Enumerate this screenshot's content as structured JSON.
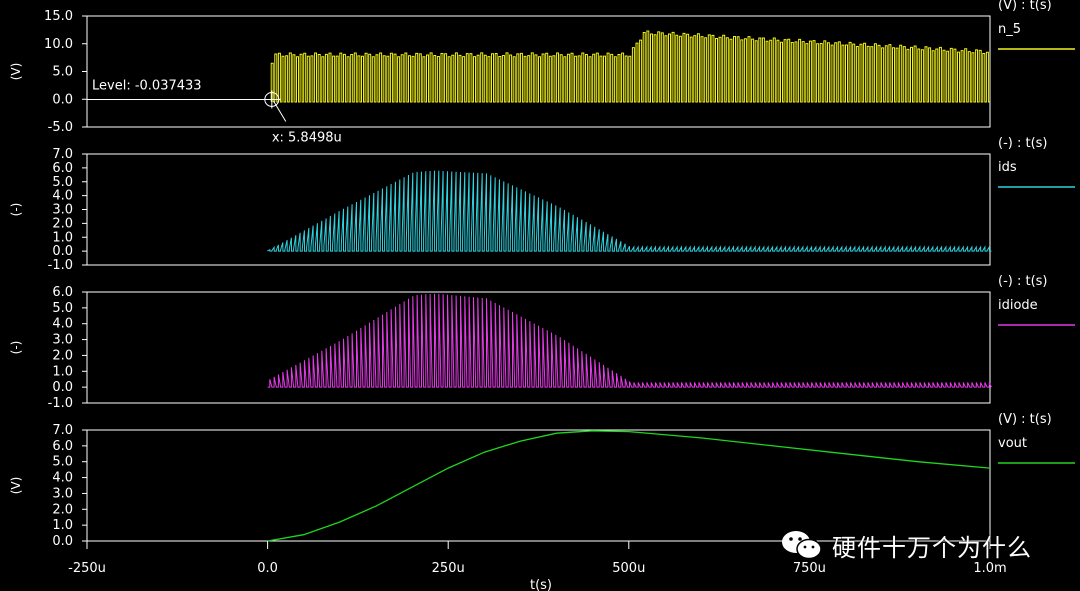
{
  "chart_data": [
    {
      "type": "line",
      "unit_label": "(V) : t(s)",
      "ylabel": "(V)",
      "yticks": [
        "15.0",
        "10.0",
        "5.0",
        "0.0",
        "-5.0"
      ],
      "ylim": [
        -5.0,
        15.0
      ],
      "xlim": [
        -250,
        1000
      ],
      "series": [
        {
          "name": "n_5",
          "color": "#f2f21a",
          "shape": "square pulse train from 0 to 1000u",
          "x": [
            0,
            5.8498,
            500,
            520,
            1000
          ],
          "y": [
            -0.037433,
            8.0,
            8.0,
            12.0,
            8.5
          ],
          "y_low": [
            -0.037433,
            -0.5,
            -0.5,
            -0.5,
            -0.5
          ]
        }
      ],
      "annotations": {
        "level_label": "Level: -0.037433",
        "level_value": -0.037433,
        "cursor_label": "x: 5.8498u",
        "cursor_x": 5.8498
      }
    },
    {
      "type": "line",
      "unit_label": "(-) : t(s)",
      "ylabel": "(-)",
      "yticks": [
        "7.0",
        "6.0",
        "5.0",
        "4.0",
        "3.0",
        "2.0",
        "1.0",
        "0.0",
        "-1.0"
      ],
      "ylim": [
        -1.0,
        7.0
      ],
      "xlim": [
        -250,
        1000
      ],
      "series": [
        {
          "name": "ids",
          "color": "#2fd3e0",
          "shape": "pulsed current with half-sine envelope",
          "x": [
            0,
            100,
            200,
            230,
            300,
            400,
            500,
            1000
          ],
          "envelope": [
            0.1,
            3.0,
            5.7,
            5.8,
            5.6,
            3.2,
            0.3,
            0.3
          ]
        }
      ]
    },
    {
      "type": "line",
      "unit_label": "(-) : t(s)",
      "ylabel": "(-)",
      "yticks": [
        "6.0",
        "5.0",
        "4.0",
        "3.0",
        "2.0",
        "1.0",
        "0.0",
        "-1.0"
      ],
      "ylim": [
        -1.0,
        6.0
      ],
      "xlim": [
        -250,
        1000
      ],
      "series": [
        {
          "name": "idiode",
          "color": "#e33be6",
          "shape": "pulsed current with half-sine envelope",
          "x": [
            0,
            100,
            200,
            230,
            300,
            400,
            500,
            1000
          ],
          "envelope": [
            0.5,
            3.0,
            5.8,
            5.9,
            5.6,
            3.2,
            0.3,
            0.3
          ]
        }
      ]
    },
    {
      "type": "line",
      "unit_label": "(V) : t(s)",
      "ylabel": "(V)",
      "yticks": [
        "7.0",
        "6.0",
        "5.0",
        "4.0",
        "3.0",
        "2.0",
        "1.0",
        "0.0"
      ],
      "ylim": [
        0.0,
        7.0
      ],
      "xlim": [
        -250,
        1000
      ],
      "series": [
        {
          "name": "vout",
          "color": "#1fd51f",
          "x": [
            0,
            50,
            100,
            150,
            200,
            250,
            300,
            350,
            400,
            450,
            500,
            600,
            700,
            800,
            900,
            1000
          ],
          "y": [
            0.0,
            0.4,
            1.2,
            2.2,
            3.4,
            4.6,
            5.6,
            6.3,
            6.8,
            6.95,
            6.9,
            6.5,
            6.0,
            5.5,
            5.0,
            4.6
          ]
        }
      ],
      "xticks": [
        "-250u",
        "0.0",
        "250u",
        "500u",
        "750u",
        "1.0m"
      ],
      "xtick_values": [
        -250,
        0,
        250,
        500,
        750,
        1000
      ],
      "xlabel": "t(s)"
    }
  ],
  "watermark": {
    "text": "硬件十万个为什么",
    "icon": "wechat-icon"
  }
}
